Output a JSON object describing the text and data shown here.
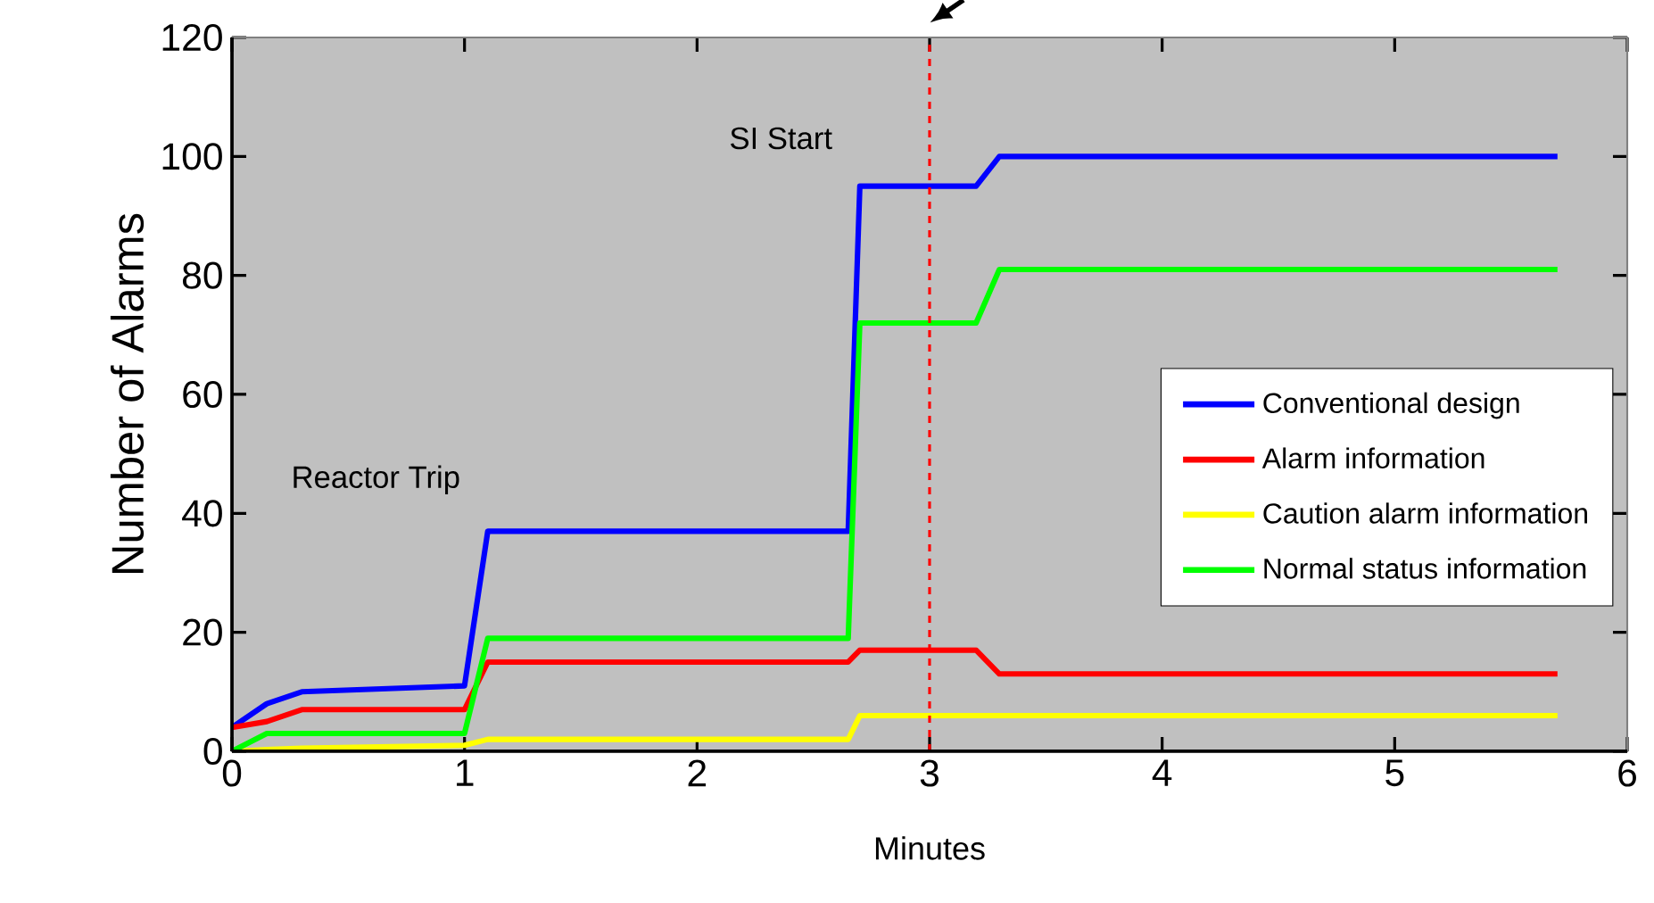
{
  "chart_data": {
    "type": "line",
    "xlabel": "Minutes",
    "ylabel": "Number of Alarms",
    "xlim": [
      0,
      6
    ],
    "xticks": [
      0,
      1,
      2,
      3,
      4,
      5,
      6
    ],
    "ylim": [
      0,
      120
    ],
    "yticks": [
      0,
      20,
      40,
      60,
      80,
      100,
      120
    ],
    "legend": "right",
    "marker": "none",
    "line_style": "solid",
    "x": [
      0,
      0.15,
      0.3,
      1.0,
      1.1,
      2.65,
      2.7,
      3.2,
      3.3,
      5.7
    ],
    "series": [
      {
        "name": "Conventional design",
        "color": "#0000ff",
        "values": [
          4,
          8,
          10,
          11,
          37,
          37,
          95,
          95,
          100,
          100
        ]
      },
      {
        "name": "Alarm information",
        "color": "#ff0000",
        "values": [
          4,
          5,
          7,
          7,
          15,
          15,
          17,
          17,
          13,
          13
        ]
      },
      {
        "name": "Caution alarm information",
        "color": "#ffff00",
        "values": [
          0,
          0.3,
          0.5,
          1,
          2,
          2,
          6,
          6,
          6,
          6
        ]
      },
      {
        "name": "Normal status information",
        "color": "#00ff00",
        "values": [
          0,
          3,
          3,
          3,
          19,
          19,
          72,
          72,
          81,
          81
        ]
      }
    ],
    "ref_lines": [
      {
        "axis": "x",
        "value": 3,
        "color": "#ff0000",
        "line_style": "dashed"
      }
    ],
    "annotations": [
      {
        "text": "Reactor Trip",
        "x": 1.1,
        "y": 37
      },
      {
        "text": "SI Start",
        "x": 2.7,
        "y": 95
      }
    ]
  }
}
